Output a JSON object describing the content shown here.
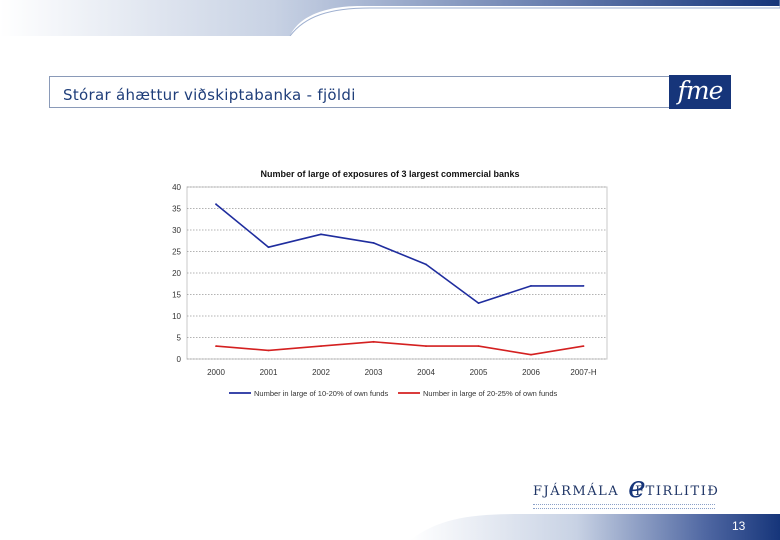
{
  "slide": {
    "title": "Stórar áhættur viðskiptabanka - fjöldi",
    "logo_text": "fme",
    "footer_logo_left": "FJÁRMÁLA",
    "footer_logo_e": "e",
    "footer_logo_right": "FTIRLITIÐ",
    "page_number": "13"
  },
  "colors": {
    "brand_blue": "#16357a",
    "series_blue": "#1f2d9e",
    "series_red": "#d42020"
  },
  "chart_data": {
    "type": "line",
    "title": "Number of large of exposures of 3 largest commercial banks",
    "xlabel": "",
    "ylabel": "",
    "categories": [
      "2000",
      "2001",
      "2002",
      "2003",
      "2004",
      "2005",
      "2006",
      "2007-H"
    ],
    "yticks": [
      "40",
      "35",
      "30",
      "25",
      "20",
      "15",
      "10",
      "5",
      "0"
    ],
    "ylim": [
      0,
      40
    ],
    "grid": true,
    "legend": "bottom",
    "series": [
      {
        "name": "Number in large of 10-20% of own funds",
        "color": "#1f2d9e",
        "values": [
          36,
          26,
          29,
          27,
          22,
          13,
          17,
          17
        ]
      },
      {
        "name": "Number in large of 20-25% of own funds",
        "color": "#d42020",
        "values": [
          3,
          2,
          3,
          4,
          3,
          3,
          1,
          3
        ]
      }
    ]
  }
}
